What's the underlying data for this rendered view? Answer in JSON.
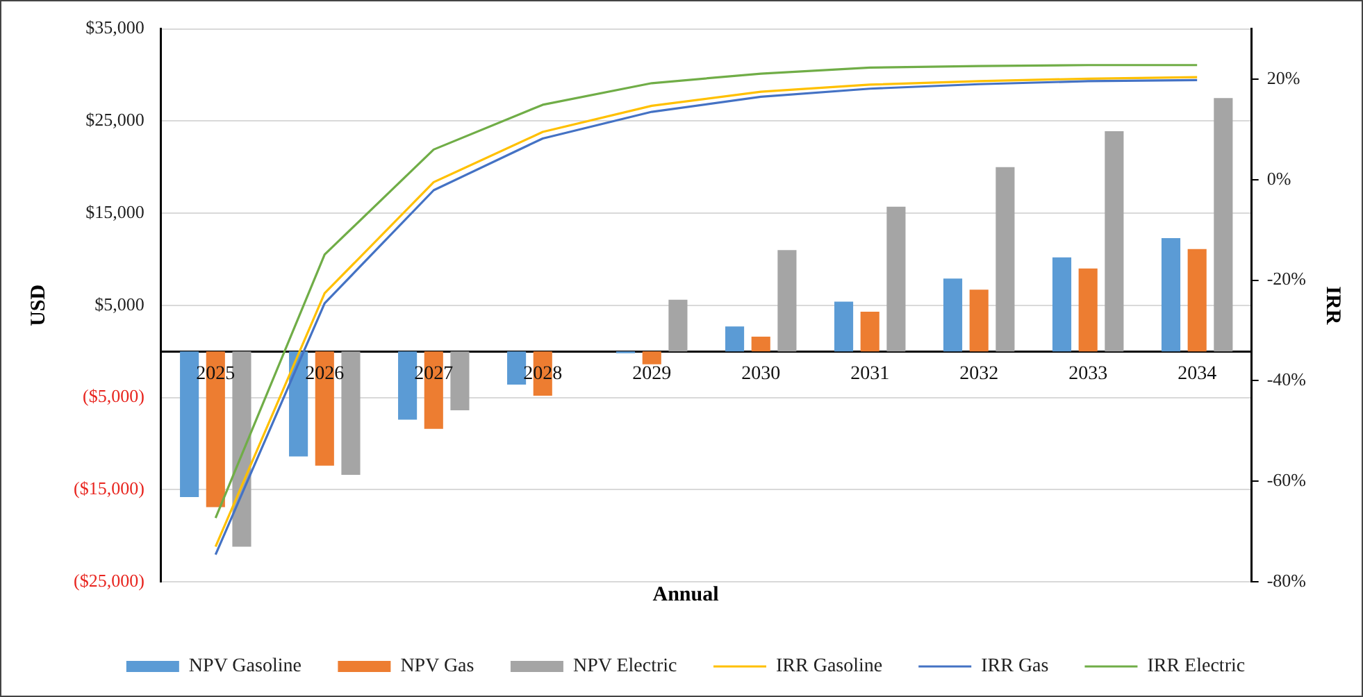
{
  "chart_data": {
    "type": "bar",
    "xlabel": "Annual",
    "ylabel": "USD",
    "y2label": "IRR",
    "categories": [
      "2025",
      "2026",
      "2027",
      "2028",
      "2029",
      "2030",
      "2031",
      "2032",
      "2033",
      "2034"
    ],
    "series": [
      {
        "name": "NPV Gasoline",
        "color": "#5b9bd5",
        "values": [
          -15800,
          -11400,
          -7400,
          -3600,
          -200,
          2700,
          5400,
          7900,
          10200,
          12300
        ]
      },
      {
        "name": "NPV Gas",
        "color": "#ed7d31",
        "values": [
          -16900,
          -12400,
          -8400,
          -4800,
          -1400,
          1600,
          4300,
          6700,
          9000,
          11100
        ]
      },
      {
        "name": "NPV Electric",
        "color": "#a5a5a5",
        "values": [
          -21200,
          -13400,
          -6400,
          0,
          5600,
          11000,
          15700,
          20000,
          23900,
          27500
        ]
      },
      {
        "name": "IRR Gasoline",
        "type": "line",
        "axis": "y2",
        "color": "#ffc000",
        "values": [
          -73,
          -22.6,
          -0.5,
          9.5,
          14.7,
          17.5,
          18.9,
          19.6,
          20.1,
          20.4
        ]
      },
      {
        "name": "IRR Gas",
        "type": "line",
        "axis": "y2",
        "color": "#4472c4",
        "values": [
          -74.6,
          -24.6,
          -2.1,
          8.2,
          13.5,
          16.5,
          18.1,
          19,
          19.6,
          19.8
        ]
      },
      {
        "name": "IRR Electric",
        "type": "line",
        "axis": "y2",
        "color": "#70ad47",
        "values": [
          -67.3,
          -14.9,
          6,
          14.9,
          19.2,
          21.1,
          22.3,
          22.6,
          22.8,
          22.8
        ]
      }
    ],
    "ylim": [
      -25000,
      35000
    ],
    "yticks": [
      {
        "value": 35000,
        "label": "$35,000"
      },
      {
        "value": 25000,
        "label": "$25,000"
      },
      {
        "value": 15000,
        "label": "$15,000"
      },
      {
        "value": 5000,
        "label": "$5,000"
      },
      {
        "value": -5000,
        "label": "($5,000)"
      },
      {
        "value": -15000,
        "label": "($15,000)"
      },
      {
        "value": -25000,
        "label": "($25,000)"
      }
    ],
    "y2lim": [
      -80,
      30
    ],
    "y2ticks": [
      {
        "value": 20,
        "label": "20%"
      },
      {
        "value": 0,
        "label": "0%"
      },
      {
        "value": -20,
        "label": "-20%"
      },
      {
        "value": -40,
        "label": "-40%"
      },
      {
        "value": -60,
        "label": "-60%"
      },
      {
        "value": -80,
        "label": "-80%"
      }
    ],
    "grid": "y",
    "legend": "bottom",
    "marker": "none",
    "line_style": "solid"
  }
}
